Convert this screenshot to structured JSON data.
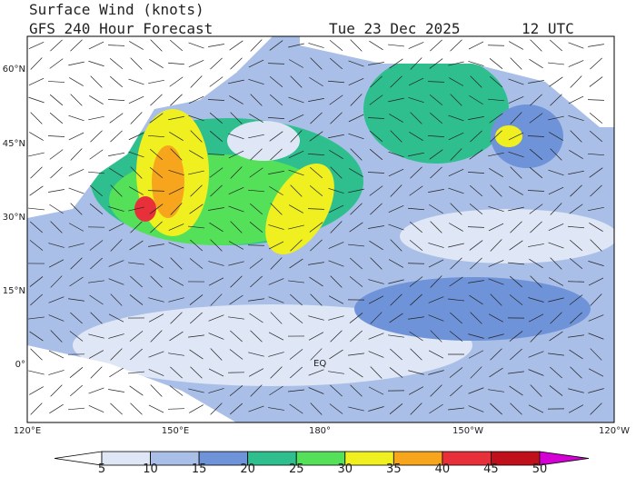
{
  "header": {
    "title": "Surface Wind (knots)",
    "subtitle": "GFS 240 Hour Forecast",
    "date": "Tue 23 Dec 2025",
    "time": "12 UTC"
  },
  "map": {
    "lat_labels": [
      "60°N",
      "45°N",
      "30°N",
      "15°N",
      "0°"
    ],
    "lon_labels": [
      "120°E",
      "150°E",
      "180°",
      "150°W",
      "120°W"
    ],
    "equator_label": "EQ"
  },
  "colorbar": {
    "ticks": [
      5,
      10,
      15,
      20,
      25,
      30,
      35,
      40,
      45,
      50
    ],
    "colors": [
      "#ffffff",
      "#dfe6f5",
      "#a9bfe8",
      "#6f93d8",
      "#2fbf8f",
      "#55e05a",
      "#f0f020",
      "#f7a51c",
      "#e8303a",
      "#c0101c",
      "#d400d4"
    ]
  }
}
